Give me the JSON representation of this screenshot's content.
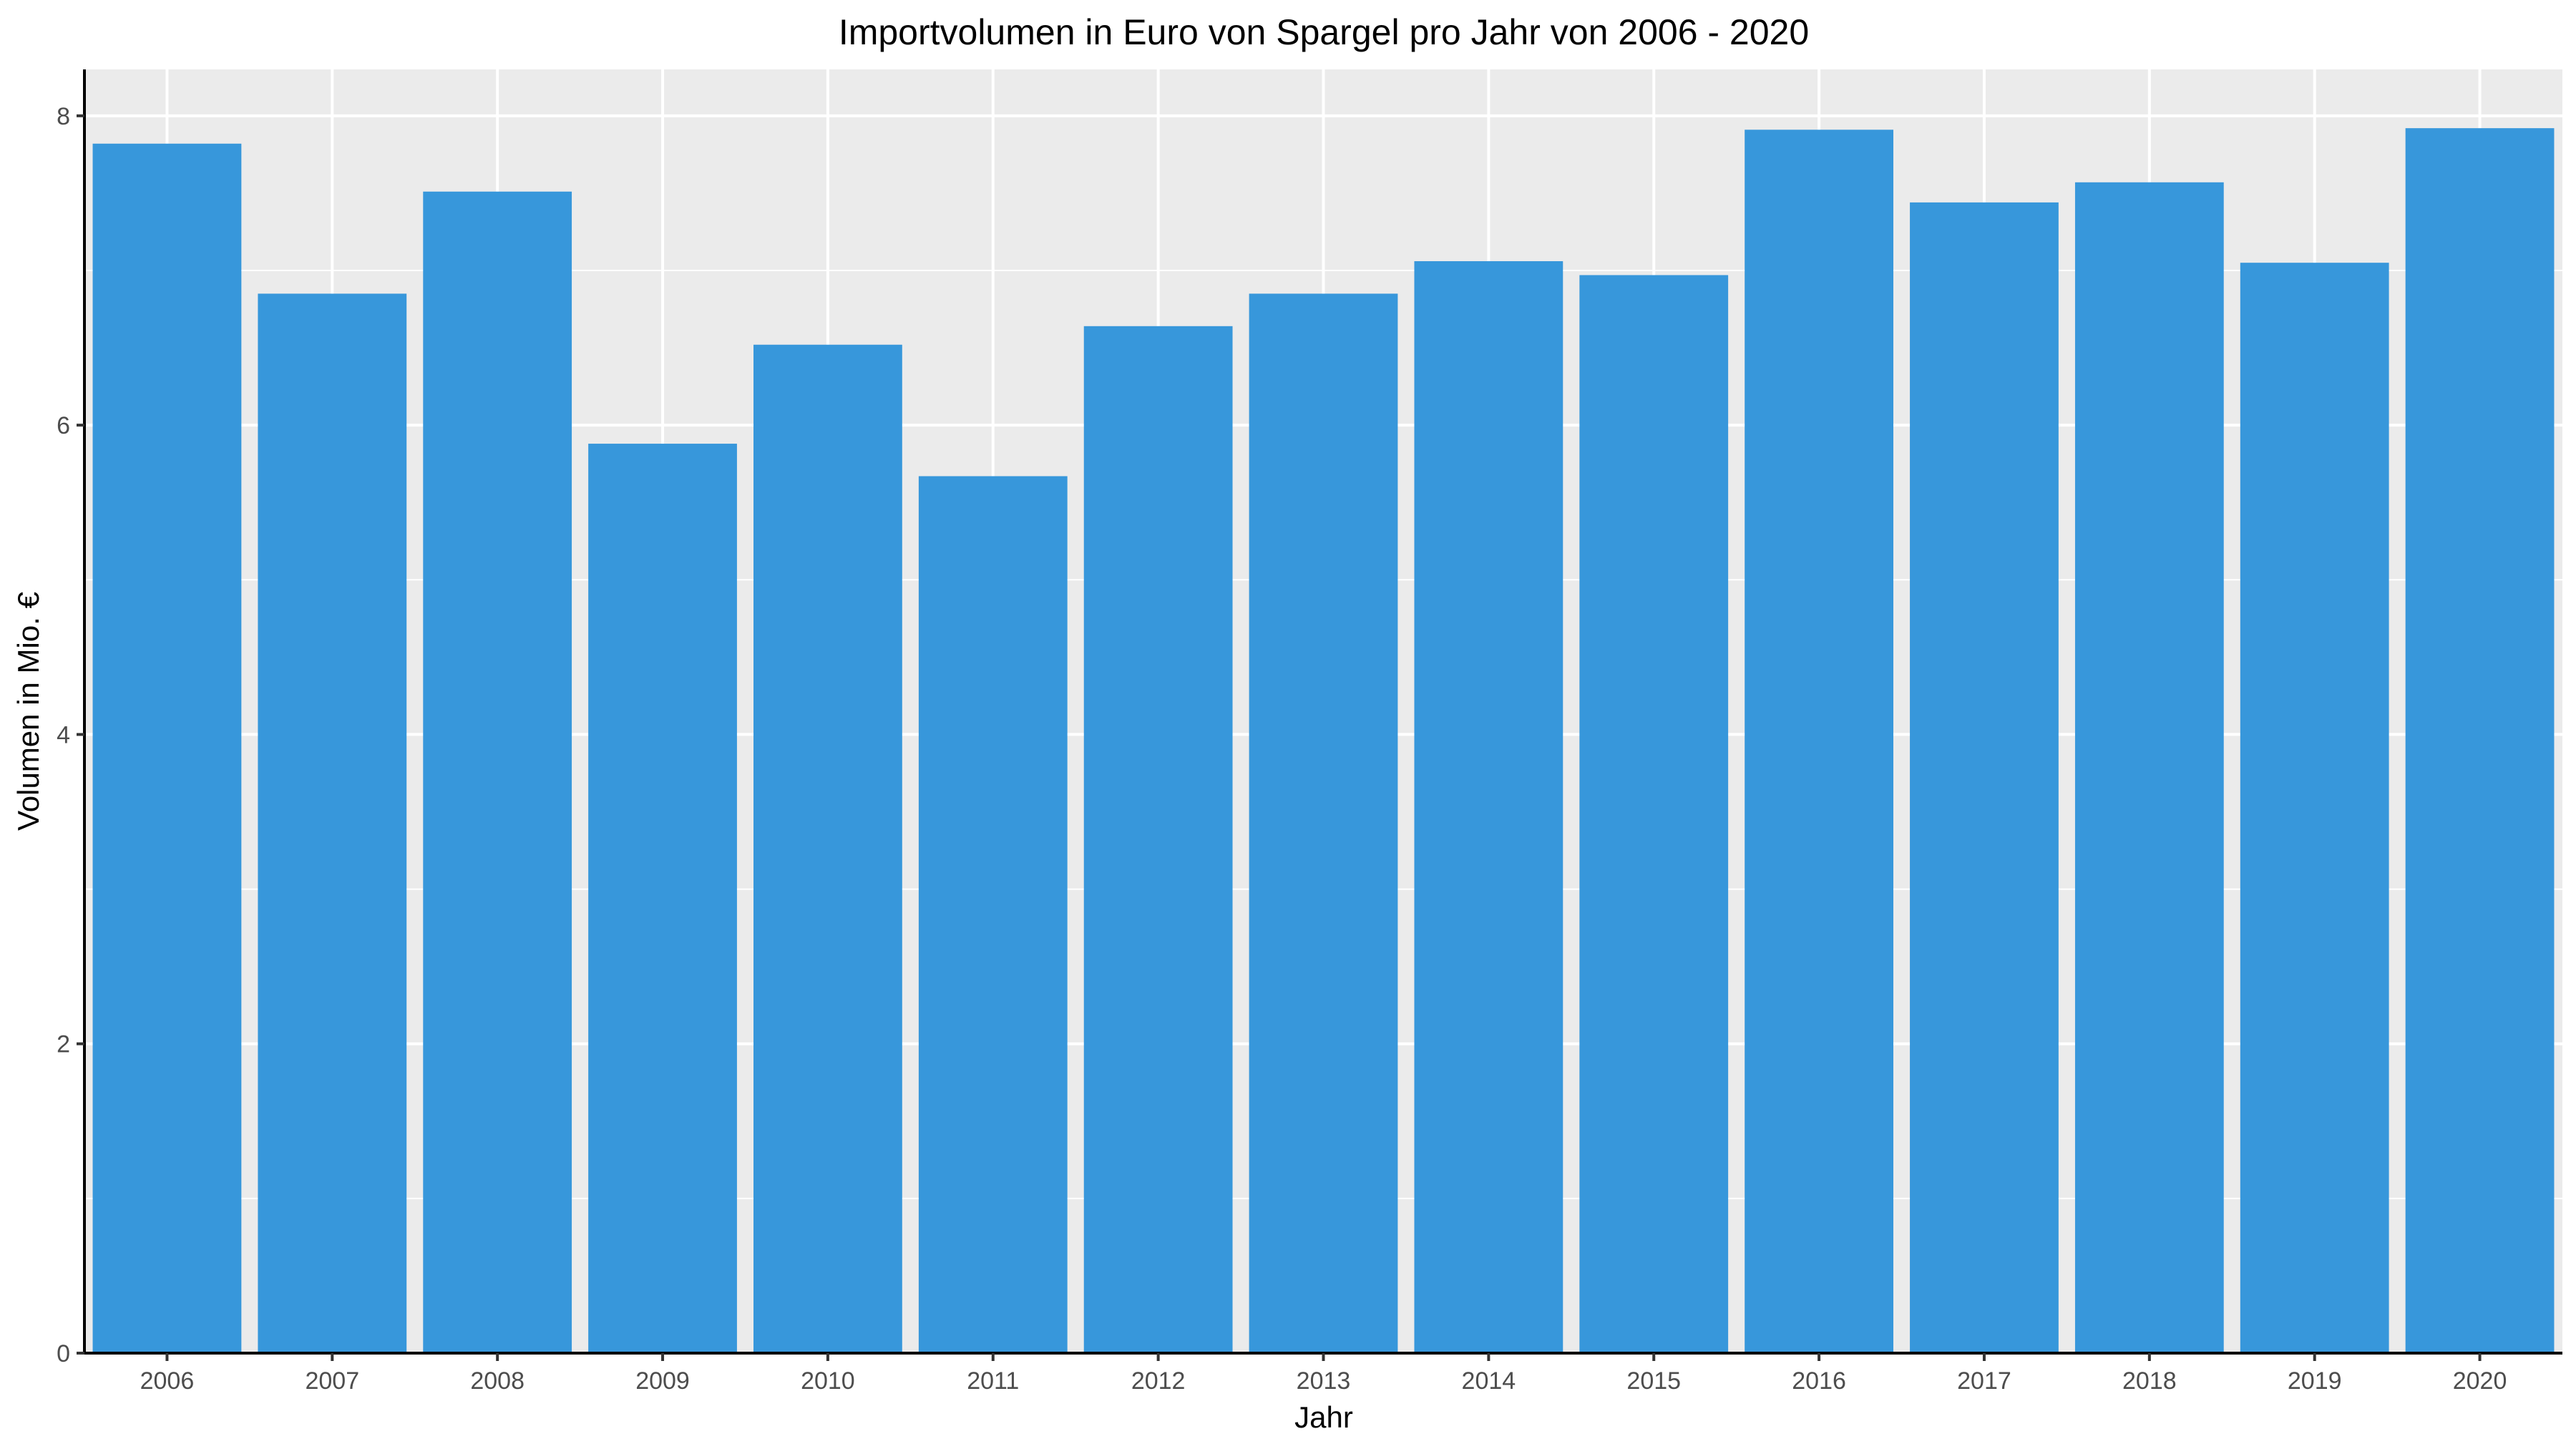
{
  "colors": {
    "bar": "#3797db",
    "panel_background": "#ebebeb",
    "grid": "#ffffff",
    "axis_line": "#000000",
    "tick_text": "#4d4d4d"
  },
  "chart_data": {
    "type": "bar",
    "title": "Importvolumen in Euro von Spargel pro Jahr von 2006 - 2020",
    "xlabel": "Jahr",
    "ylabel": "Volumen in Mio. €",
    "categories": [
      "2006",
      "2007",
      "2008",
      "2009",
      "2010",
      "2011",
      "2012",
      "2013",
      "2014",
      "2015",
      "2016",
      "2017",
      "2018",
      "2019",
      "2020"
    ],
    "values": [
      7.82,
      6.85,
      7.51,
      5.88,
      6.52,
      5.67,
      6.64,
      6.85,
      7.06,
      6.97,
      7.91,
      7.44,
      7.57,
      7.05,
      7.92
    ],
    "ylim": [
      0,
      8.3
    ],
    "yticks": [
      0,
      2,
      4,
      6,
      8
    ],
    "ytick_labels": [
      "0",
      "2",
      "4",
      "6",
      "8"
    ],
    "grid": true,
    "legend": "none"
  }
}
